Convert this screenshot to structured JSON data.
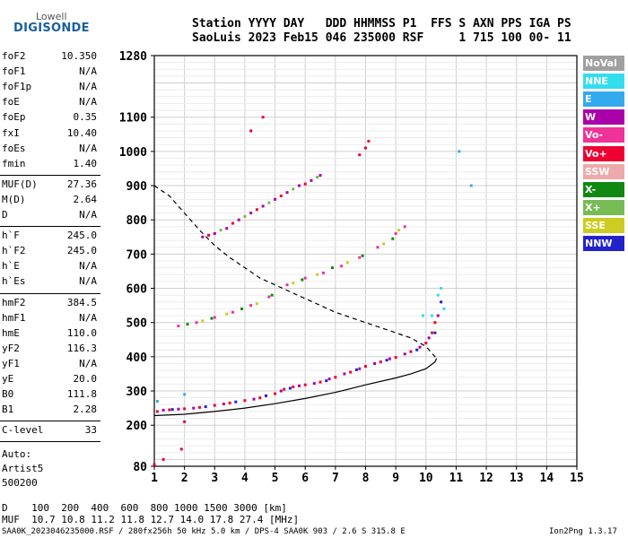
{
  "logo": {
    "line1": "Lowell",
    "line2": "DIGISONDE"
  },
  "header": {
    "line1": "Station YYYY DAY   DDD HHMMSS P1  FFS S AXN PPS IGA PS",
    "line2": "SaoLuis 2023 Feb15 046 235000 RSF     1 715 100 00- 11"
  },
  "params1": [
    {
      "k": "foF2",
      "v": "10.350"
    },
    {
      "k": "foF1",
      "v": "N/A"
    },
    {
      "k": "foF1p",
      "v": "N/A"
    },
    {
      "k": "foE",
      "v": "N/A"
    },
    {
      "k": "foEp",
      "v": "0.35"
    },
    {
      "k": "fxI",
      "v": "10.40"
    },
    {
      "k": "foEs",
      "v": "N/A"
    },
    {
      "k": "fmin",
      "v": "1.40"
    }
  ],
  "params2": [
    {
      "k": "MUF(D)",
      "v": "27.36"
    },
    {
      "k": "M(D)",
      "v": "2.64"
    },
    {
      "k": "D",
      "v": "N/A"
    }
  ],
  "params3": [
    {
      "k": "h`F",
      "v": "245.0"
    },
    {
      "k": "h`F2",
      "v": "245.0"
    },
    {
      "k": "h`E",
      "v": "N/A"
    },
    {
      "k": "h`Es",
      "v": "N/A"
    }
  ],
  "params4": [
    {
      "k": "hmF2",
      "v": "384.5"
    },
    {
      "k": "hmF1",
      "v": "N/A"
    },
    {
      "k": "hmE",
      "v": "110.0"
    },
    {
      "k": "yF2",
      "v": "116.3"
    },
    {
      "k": "yF1",
      "v": "N/A"
    },
    {
      "k": "yE",
      "v": "20.0"
    },
    {
      "k": "B0",
      "v": "111.8"
    },
    {
      "k": "B1",
      "v": "2.28"
    }
  ],
  "params5": [
    {
      "k": "C-level",
      "v": "33"
    }
  ],
  "auto": [
    "Auto:",
    "Artist5",
    "500200"
  ],
  "legend": [
    {
      "label": "NoVal",
      "color": "#a0a0a0"
    },
    {
      "label": "NNE",
      "color": "#33ddee"
    },
    {
      "label": "E",
      "color": "#33aaee"
    },
    {
      "label": "W",
      "color": "#aa00aa"
    },
    {
      "label": "Vo-",
      "color": "#ee3399"
    },
    {
      "label": "Vo+",
      "color": "#ee0033"
    },
    {
      "label": "SSW",
      "color": "#eeaaaa"
    },
    {
      "label": "X-",
      "color": "#118811"
    },
    {
      "label": "X+",
      "color": "#77bb55"
    },
    {
      "label": "SSE",
      "color": "#cccc22"
    },
    {
      "label": "NNW",
      "color": "#2222cc"
    }
  ],
  "footer": {
    "d_line": "D    100  200  400  600  800 1000 1500 3000 [km]",
    "muf_line": "MUF  10.7 10.8 11.2 11.8 12.7 14.0 17.8 27.4 [MHz]",
    "file_line": "SAA0K_2023046235000.RSF / 280fx256h 50 kHz 5.0 km / DPS-4 SAA0K 903 / 2.6 S 315.8 E",
    "version": "Ion2Png 1.3.17"
  },
  "chart_data": {
    "type": "scatter",
    "xlim": [
      1,
      15
    ],
    "ylim": [
      80,
      1280
    ],
    "x_ticks": [
      1,
      2,
      3,
      4,
      5,
      6,
      7,
      8,
      9,
      10,
      11,
      12,
      13,
      14,
      15
    ],
    "y_ticks": [
      80,
      200,
      300,
      400,
      500,
      600,
      700,
      800,
      900,
      1000,
      1100,
      1280
    ],
    "grid": true,
    "series": [
      {
        "color": "#ee0033",
        "points": [
          [
            1.1,
            240
          ],
          [
            1.5,
            245
          ],
          [
            2.0,
            248
          ],
          [
            2.5,
            252
          ],
          [
            3.0,
            258
          ],
          [
            3.5,
            265
          ],
          [
            4.0,
            272
          ],
          [
            4.5,
            280
          ],
          [
            5.0,
            292
          ],
          [
            5.3,
            305
          ],
          [
            5.6,
            312
          ],
          [
            6.0,
            318
          ],
          [
            6.5,
            326
          ],
          [
            7.0,
            340
          ],
          [
            7.5,
            355
          ],
          [
            8.0,
            372
          ],
          [
            8.5,
            385
          ],
          [
            9.0,
            398
          ],
          [
            9.5,
            415
          ],
          [
            10.0,
            440
          ],
          [
            10.2,
            470
          ],
          [
            10.3,
            500
          ]
        ]
      },
      {
        "color": "#aa00aa",
        "points": [
          [
            1.3,
            244
          ],
          [
            1.8,
            247
          ],
          [
            2.3,
            250
          ],
          [
            3.3,
            262
          ],
          [
            4.3,
            276
          ],
          [
            5.2,
            300
          ],
          [
            5.8,
            315
          ],
          [
            6.3,
            322
          ],
          [
            6.8,
            335
          ],
          [
            7.3,
            350
          ],
          [
            7.8,
            365
          ],
          [
            8.3,
            380
          ],
          [
            8.8,
            394
          ],
          [
            9.3,
            408
          ],
          [
            9.8,
            428
          ],
          [
            10.1,
            455
          ],
          [
            10.4,
            520
          ]
        ]
      },
      {
        "color": "#2222cc",
        "points": [
          [
            1.6,
            246
          ],
          [
            2.7,
            254
          ],
          [
            3.7,
            268
          ],
          [
            4.7,
            286
          ],
          [
            5.5,
            308
          ],
          [
            6.7,
            330
          ],
          [
            7.7,
            362
          ],
          [
            8.7,
            390
          ],
          [
            9.7,
            420
          ],
          [
            10.3,
            470
          ],
          [
            10.5,
            560
          ]
        ]
      },
      {
        "color": "#33ddee",
        "points": [
          [
            10.2,
            520
          ],
          [
            10.4,
            580
          ],
          [
            10.5,
            600
          ],
          [
            10.6,
            540
          ],
          [
            9.9,
            520
          ]
        ]
      },
      {
        "color": "#ee3399",
        "points": [
          [
            1.8,
            490
          ],
          [
            2.4,
            500
          ],
          [
            3.0,
            515
          ],
          [
            3.6,
            530
          ],
          [
            4.2,
            550
          ],
          [
            4.8,
            575
          ],
          [
            5.4,
            610
          ],
          [
            6.0,
            630
          ],
          [
            6.6,
            645
          ],
          [
            7.2,
            665
          ],
          [
            7.8,
            690
          ],
          [
            8.4,
            720
          ],
          [
            9.0,
            760
          ],
          [
            9.3,
            780
          ]
        ]
      },
      {
        "color": "#118811",
        "points": [
          [
            2.1,
            495
          ],
          [
            2.9,
            512
          ],
          [
            3.9,
            540
          ],
          [
            4.9,
            580
          ],
          [
            5.9,
            625
          ],
          [
            6.9,
            660
          ],
          [
            7.9,
            695
          ],
          [
            8.9,
            745
          ]
        ]
      },
      {
        "color": "#cccc22",
        "points": [
          [
            2.6,
            505
          ],
          [
            3.4,
            525
          ],
          [
            4.4,
            555
          ],
          [
            5.6,
            615
          ],
          [
            6.4,
            640
          ],
          [
            7.4,
            675
          ],
          [
            8.6,
            730
          ],
          [
            9.1,
            770
          ]
        ]
      },
      {
        "color": "#aa00aa",
        "points": [
          [
            2.6,
            750
          ],
          [
            3.0,
            760
          ],
          [
            3.4,
            775
          ],
          [
            3.8,
            800
          ],
          [
            4.2,
            820
          ],
          [
            4.6,
            840
          ],
          [
            5.0,
            860
          ],
          [
            5.4,
            880
          ],
          [
            5.8,
            900
          ],
          [
            6.2,
            915
          ],
          [
            6.5,
            930
          ]
        ]
      },
      {
        "color": "#ee0033",
        "points": [
          [
            2.8,
            755
          ],
          [
            3.6,
            790
          ],
          [
            4.4,
            830
          ],
          [
            5.2,
            870
          ],
          [
            6.0,
            905
          ],
          [
            4.2,
            1060
          ],
          [
            4.6,
            1100
          ],
          [
            8.0,
            1010
          ],
          [
            7.8,
            990
          ],
          [
            8.1,
            1030
          ]
        ]
      },
      {
        "color": "#77bb55",
        "points": [
          [
            3.2,
            770
          ],
          [
            4.0,
            810
          ],
          [
            4.8,
            850
          ],
          [
            5.6,
            890
          ],
          [
            6.4,
            925
          ]
        ]
      },
      {
        "color": "#ee0033",
        "points": [
          [
            1.0,
            85
          ],
          [
            1.3,
            100
          ],
          [
            1.9,
            130
          ],
          [
            2.0,
            210
          ]
        ]
      },
      {
        "color": "#33aaee",
        "points": [
          [
            1.1,
            270
          ],
          [
            2.0,
            290
          ],
          [
            11.1,
            1000
          ],
          [
            11.5,
            900
          ]
        ]
      }
    ],
    "curves": [
      {
        "style": "dashed",
        "color": "#000000",
        "points": [
          [
            1.0,
            900
          ],
          [
            1.5,
            870
          ],
          [
            2.0,
            820
          ],
          [
            2.5,
            770
          ],
          [
            3.0,
            725
          ],
          [
            3.5,
            690
          ],
          [
            4.0,
            660
          ],
          [
            4.5,
            630
          ],
          [
            5.0,
            610
          ],
          [
            5.5,
            590
          ],
          [
            6.0,
            570
          ],
          [
            6.5,
            550
          ],
          [
            7.0,
            530
          ],
          [
            7.5,
            515
          ],
          [
            8.0,
            500
          ],
          [
            8.5,
            485
          ],
          [
            9.0,
            470
          ],
          [
            9.5,
            455
          ],
          [
            10.0,
            430
          ],
          [
            10.35,
            395
          ]
        ]
      },
      {
        "style": "solid",
        "color": "#000000",
        "points": [
          [
            1.0,
            228
          ],
          [
            2.0,
            232
          ],
          [
            3.0,
            240
          ],
          [
            4.0,
            250
          ],
          [
            5.0,
            263
          ],
          [
            6.0,
            278
          ],
          [
            7.0,
            296
          ],
          [
            8.0,
            318
          ],
          [
            9.0,
            338
          ],
          [
            9.5,
            350
          ],
          [
            10.0,
            365
          ],
          [
            10.3,
            385
          ],
          [
            10.35,
            395
          ]
        ]
      }
    ]
  }
}
